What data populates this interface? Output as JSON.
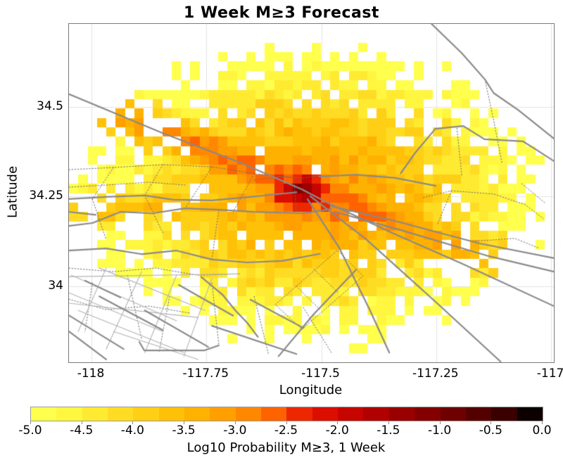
{
  "chart_data": {
    "type": "heatmap",
    "title": "1 Week M≥3 Forecast",
    "xlabel": "Longitude",
    "ylabel": "Latitude",
    "xlim": [
      -118.049,
      -116.994
    ],
    "ylim": [
      33.787,
      34.732
    ],
    "x_ticks": {
      "values": [
        -118,
        -117.75,
        -117.5,
        -117.25,
        -117
      ],
      "labels": [
        "-118",
        "-117.75",
        "-117.5",
        "-117.25",
        "-117"
      ]
    },
    "y_ticks": {
      "values": [
        34.5,
        34.25,
        34
      ],
      "labels": [
        "34.5",
        "34.25",
        "34"
      ]
    },
    "grid": {
      "nx": 52,
      "ny": 36,
      "gridline_color": "#e4e4e4",
      "background": "#ffffff"
    },
    "colorbar": {
      "label": "Log10 Probability M≥3, 1 Week",
      "vmin": -5,
      "vmax": 0,
      "bin_size": 0.25,
      "tick_labels": [
        "-5.0",
        "-4.5",
        "-4.0",
        "-3.5",
        "-3.0",
        "-2.5",
        "-2.0",
        "-1.5",
        "-1.0",
        "-0.5",
        "0.0"
      ],
      "colors": [
        "#ffff4d",
        "#fff640",
        "#ffea32",
        "#ffdc24",
        "#ffcf16",
        "#ffc108",
        "#ffb100",
        "#ff9f00",
        "#ff8800",
        "#ff6300",
        "#ed2800",
        "#dc0e00",
        "#c60400",
        "#b00000",
        "#9a0000",
        "#840000",
        "#6e0000",
        "#550000",
        "#3a0000",
        "#0d0000"
      ]
    },
    "field": {
      "seed": 1337,
      "noise_amp": 0.55,
      "edge_jitter": 0.14,
      "background": {
        "center": [
          -117.521,
          34.256
        ],
        "rx": 0.521,
        "ry": 0.423,
        "base": -3.0,
        "slope": -2.3,
        "exp": 1.4
      },
      "peak": {
        "center": [
          -117.542,
          34.266
        ],
        "amp": -0.75,
        "k": 0.75,
        "sx": 0.021,
        "sy": 0.017,
        "pexp": 0.85,
        "rot_deg": -20
      },
      "ridges": [
        {
          "p1": [
            -118.06,
            34.54
          ],
          "p2": [
            -117.56,
            34.28
          ],
          "v1": -3.3,
          "v2": -2.35,
          "width": 0.055,
          "rexp": 1.4,
          "drop": 1.1
        },
        {
          "p1": [
            -117.53,
            34.255
          ],
          "p2": [
            -117.08,
            34.06
          ],
          "v1": -2.35,
          "v2": -3.7,
          "width": 0.075,
          "rexp": 1.3,
          "drop": 1.0
        },
        {
          "p1": [
            -118.03,
            34.21
          ],
          "p2": [
            -117.62,
            34.23
          ],
          "v1": -3.9,
          "v2": -3.15,
          "width": 0.07,
          "rexp": 1.4,
          "drop": 1.0
        }
      ],
      "holes": {
        "base": 0.025,
        "edge": 0.55,
        "start": 0.2,
        "exp": 2.1,
        "hot_threshold": -2.2,
        "hot_factor": 0.08
      }
    },
    "faults": {
      "styles": {
        "major": {
          "color": "#8a8a8a",
          "width": 2.2
        },
        "thin": {
          "color": "#b3b3b3",
          "width": 1.1
        },
        "dotted": {
          "color": "#6e6e6e",
          "width": 1
        }
      },
      "major": [
        [
          [
            -118.049,
            34.536
          ],
          [
            -117.845,
            34.427
          ],
          [
            -117.677,
            34.345
          ],
          [
            -117.542,
            34.27
          ],
          [
            -117.478,
            34.227
          ],
          [
            -117.34,
            34.145
          ],
          [
            -117.193,
            34.062
          ],
          [
            -116.994,
            33.944
          ]
        ],
        [
          [
            -117.26,
            34.732
          ],
          [
            -117.194,
            34.65
          ],
          [
            -117.144,
            34.577
          ],
          [
            -117.125,
            34.539
          ],
          [
            -117.072,
            34.492
          ],
          [
            -116.994,
            34.412
          ]
        ],
        [
          [
            -117.327,
            34.315
          ],
          [
            -117.297,
            34.37
          ],
          [
            -117.252,
            34.439
          ],
          [
            -117.191,
            34.447
          ],
          [
            -117.145,
            34.41
          ],
          [
            -117.061,
            34.404
          ],
          [
            -117.029,
            34.378
          ],
          [
            -116.994,
            34.349
          ]
        ],
        [
          [
            -117.504,
            34.306
          ],
          [
            -117.424,
            34.311
          ],
          [
            -117.34,
            34.302
          ],
          [
            -117.251,
            34.28
          ]
        ],
        [
          [
            -117.478,
            34.223
          ],
          [
            -117.34,
            34.182
          ],
          [
            -117.156,
            34.119
          ],
          [
            -116.994,
            34.078
          ]
        ],
        [
          [
            -117.47,
            34.207
          ],
          [
            -117.332,
            34.158
          ],
          [
            -117.14,
            34.085
          ],
          [
            -116.994,
            34.04
          ]
        ],
        [
          [
            -117.524,
            34.251
          ],
          [
            -117.401,
            34.129
          ],
          [
            -117.248,
            33.952
          ],
          [
            -117.11,
            33.789
          ]
        ],
        [
          [
            -117.53,
            34.243
          ],
          [
            -117.462,
            34.109
          ],
          [
            -117.394,
            33.932
          ],
          [
            -117.352,
            33.814
          ]
        ],
        [
          [
            -118.049,
            34.243
          ],
          [
            -117.968,
            34.249
          ],
          [
            -117.884,
            34.253
          ],
          [
            -117.822,
            34.241
          ],
          [
            -117.738,
            34.239
          ],
          [
            -117.654,
            34.249
          ],
          [
            -117.554,
            34.262
          ]
        ],
        [
          [
            -118.049,
            34.168
          ],
          [
            -117.998,
            34.176
          ],
          [
            -117.937,
            34.207
          ],
          [
            -117.868,
            34.203
          ],
          [
            -117.796,
            34.217
          ],
          [
            -117.723,
            34.213
          ],
          [
            -117.646,
            34.207
          ],
          [
            -117.539,
            34.203
          ],
          [
            -117.478,
            34.215
          ]
        ],
        [
          [
            -118.049,
            34.099
          ],
          [
            -117.968,
            34.105
          ],
          [
            -117.891,
            34.089
          ],
          [
            -117.815,
            34.099
          ],
          [
            -117.738,
            34.074
          ],
          [
            -117.661,
            34.066
          ],
          [
            -117.585,
            34.07
          ],
          [
            -117.503,
            34.09
          ]
        ],
        [
          [
            -118.049,
            34.207
          ],
          [
            -117.991,
            34.199
          ]
        ],
        [
          [
            -117.983,
            33.971
          ],
          [
            -117.845,
            33.877
          ]
        ],
        [
          [
            -118.049,
            33.918
          ],
          [
            -117.93,
            33.824
          ]
        ],
        [
          [
            -117.884,
            33.932
          ],
          [
            -117.746,
            33.83
          ]
        ],
        [
          [
            -117.81,
            34.003
          ],
          [
            -117.692,
            33.917
          ]
        ],
        [
          [
            -117.738,
            33.889
          ],
          [
            -117.554,
            33.81
          ]
        ],
        [
          [
            -117.654,
            33.962
          ],
          [
            -117.539,
            33.883
          ]
        ],
        [
          [
            -118.014,
            34.015
          ],
          [
            -117.937,
            33.968
          ]
        ],
        [
          [
            -118.049,
            33.873
          ],
          [
            -117.968,
            33.795
          ]
        ],
        [
          [
            -117.896,
            33.844
          ],
          [
            -117.885,
            33.82
          ],
          [
            -117.755,
            33.82
          ],
          [
            -117.723,
            33.834
          ]
        ],
        [
          [
            -117.593,
            33.804
          ],
          [
            -117.516,
            33.922
          ],
          [
            -117.424,
            34.046
          ]
        ],
        [
          [
            -117.761,
            34.025
          ],
          [
            -117.715,
            33.976
          ],
          [
            -117.687,
            33.932
          ],
          [
            -117.661,
            33.897
          ],
          [
            -117.638,
            33.858
          ]
        ]
      ],
      "thin": [
        [
          [
            -118.044,
            34.03
          ],
          [
            -117.815,
            33.903
          ]
        ],
        [
          [
            -118.049,
            33.981
          ],
          [
            -117.845,
            33.873
          ]
        ],
        [
          [
            -118.029,
            33.932
          ],
          [
            -117.799,
            33.814
          ]
        ],
        [
          [
            -117.983,
            34.05
          ],
          [
            -117.753,
            33.932
          ]
        ],
        [
          [
            -117.952,
            33.873
          ],
          [
            -117.768,
            33.795
          ]
        ],
        [
          [
            -117.968,
            34.05
          ],
          [
            -118.029,
            33.873
          ]
        ],
        [
          [
            -117.891,
            34.04
          ],
          [
            -117.968,
            33.824
          ]
        ],
        [
          [
            -117.815,
            34.03
          ],
          [
            -117.884,
            33.814
          ]
        ],
        [
          [
            -117.738,
            34.021
          ],
          [
            -117.799,
            33.804
          ]
        ],
        [
          [
            -118.049,
            34.026
          ],
          [
            -117.677,
            34.034
          ]
        ],
        [
          [
            -118.049,
            33.952
          ],
          [
            -117.768,
            33.912
          ]
        ]
      ],
      "dotted": [
        [
          [
            -118.049,
            34.325
          ],
          [
            -117.952,
            34.331
          ],
          [
            -117.845,
            34.339
          ],
          [
            -117.738,
            34.333
          ],
          [
            -117.646,
            34.314
          ],
          [
            -117.554,
            34.302
          ]
        ],
        [
          [
            -118.049,
            34.276
          ],
          [
            -117.968,
            34.282
          ],
          [
            -117.876,
            34.29
          ],
          [
            -117.796,
            34.282
          ]
        ],
        [
          [
            -117.952,
            34.331
          ],
          [
            -117.998,
            34.243
          ]
        ],
        [
          [
            -117.845,
            34.339
          ],
          [
            -117.884,
            34.253
          ]
        ],
        [
          [
            -117.738,
            34.333
          ],
          [
            -117.796,
            34.217
          ]
        ],
        [
          [
            -117.646,
            34.314
          ],
          [
            -117.692,
            34.207
          ]
        ],
        [
          [
            -117.884,
            34.253
          ],
          [
            -117.845,
            34.149
          ]
        ],
        [
          [
            -117.998,
            34.243
          ],
          [
            -117.968,
            34.129
          ]
        ],
        [
          [
            -117.723,
            34.213
          ],
          [
            -117.738,
            34.074
          ]
        ],
        [
          [
            -117.56,
            34.3
          ],
          [
            -117.554,
            34.203
          ]
        ],
        [
          [
            -117.646,
            34.296
          ],
          [
            -117.585,
            34.305
          ],
          [
            -117.542,
            34.301
          ],
          [
            -117.501,
            34.309
          ]
        ],
        [
          [
            -117.144,
            34.577
          ],
          [
            -117.125,
            34.463
          ],
          [
            -117.107,
            34.345
          ]
        ],
        [
          [
            -117.205,
            34.441
          ],
          [
            -117.194,
            34.305
          ]
        ],
        [
          [
            -117.278,
            34.247
          ],
          [
            -117.217,
            34.266
          ],
          [
            -117.125,
            34.257
          ],
          [
            -117.056,
            34.227
          ],
          [
            -117.017,
            34.188
          ]
        ],
        [
          [
            -117.064,
            34.286
          ],
          [
            -117.014,
            34.233
          ]
        ],
        [
          [
            -117.171,
            34.125
          ],
          [
            -117.079,
            34.133
          ],
          [
            -117.025,
            34.105
          ]
        ],
        [
          [
            -117.217,
            34.266
          ],
          [
            -117.248,
            34.17
          ]
        ],
        [
          [
            -117.6,
            33.948
          ],
          [
            -117.465,
            34.1
          ],
          [
            -117.409,
            34.028
          ],
          [
            -117.542,
            33.879
          ],
          [
            -117.6,
            33.948
          ]
        ],
        [
          [
            -117.554,
            33.999
          ],
          [
            -117.501,
            33.932
          ]
        ],
        [
          [
            -117.516,
            34.047
          ],
          [
            -117.462,
            33.98
          ]
        ],
        [
          [
            -118.049,
            34.05
          ],
          [
            -117.952,
            34.04
          ],
          [
            -117.86,
            34.05
          ],
          [
            -117.768,
            34.03
          ],
          [
            -117.677,
            34.034
          ]
        ],
        [
          [
            -117.998,
            34.009
          ],
          [
            -118.014,
            33.873
          ]
        ],
        [
          [
            -117.922,
            34.03
          ],
          [
            -117.891,
            33.853
          ]
        ],
        [
          [
            -117.83,
            33.971
          ],
          [
            -117.853,
            33.814
          ]
        ],
        [
          [
            -117.738,
            34.009
          ],
          [
            -117.723,
            33.838
          ]
        ],
        [
          [
            -117.646,
            33.971
          ],
          [
            -117.615,
            33.81
          ]
        ],
        [
          [
            -117.539,
            33.94
          ],
          [
            -117.478,
            33.814
          ]
        ],
        [
          [
            -118.049,
            33.963
          ],
          [
            -117.968,
            33.934
          ],
          [
            -117.876,
            33.944
          ],
          [
            -117.784,
            33.924
          ]
        ]
      ]
    }
  }
}
